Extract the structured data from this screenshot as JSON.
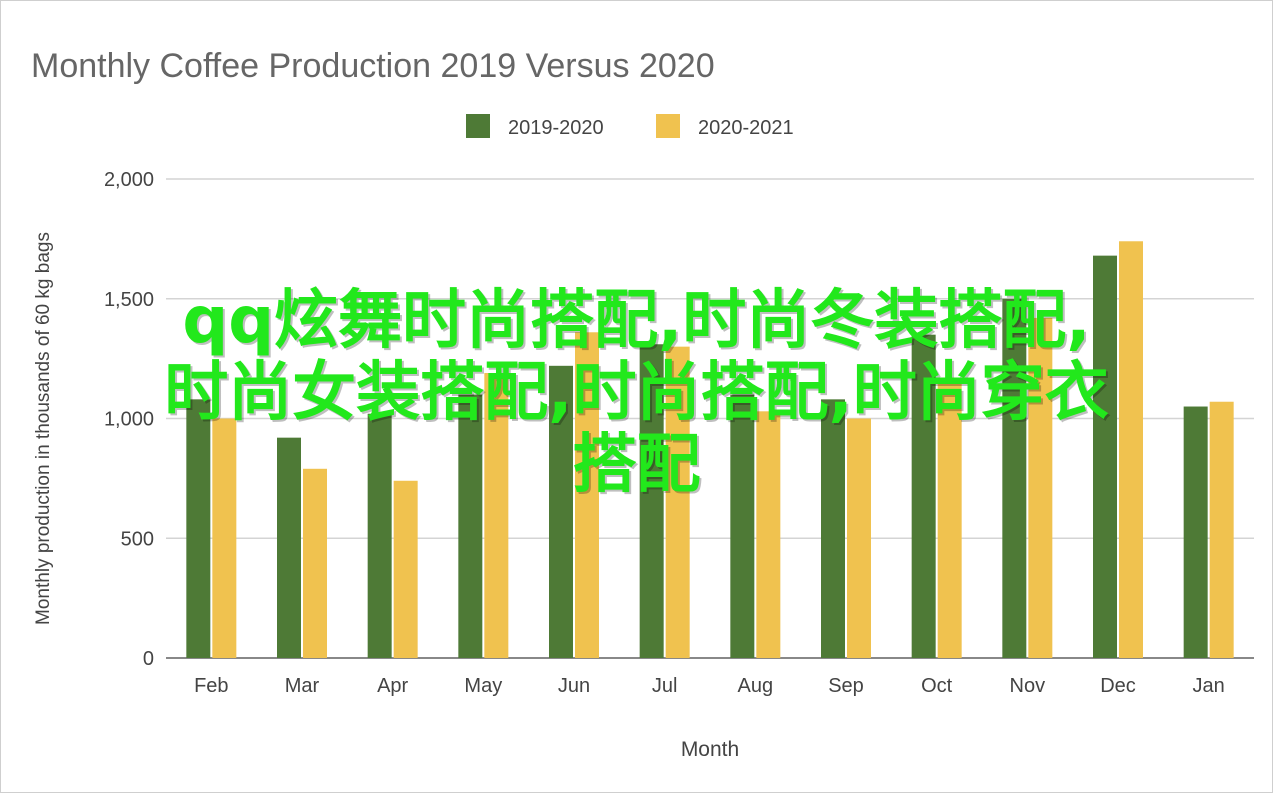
{
  "chart_data": {
    "type": "bar",
    "title": "Monthly Coffee Production 2019 Versus 2020",
    "xlabel": "Month",
    "ylabel": "Monthly production in thousands of 60 kg bags",
    "ylim": [
      0,
      2000
    ],
    "yticks": [
      0,
      500,
      1000,
      1500,
      2000
    ],
    "ytick_labels": [
      "0",
      "500",
      "1,000",
      "1,500",
      "2,000"
    ],
    "categories": [
      "Feb",
      "Mar",
      "Apr",
      "May",
      "Jun",
      "Jul",
      "Aug",
      "Sep",
      "Oct",
      "Nov",
      "Dec",
      "Jan"
    ],
    "series": [
      {
        "name": "2019-2020",
        "color": "#4e7a36",
        "values": [
          1080,
          920,
          1020,
          1100,
          1220,
          1310,
          1100,
          1080,
          1350,
          1500,
          1680,
          1050
        ]
      },
      {
        "name": "2020-2021",
        "color": "#f0c24f",
        "values": [
          1000,
          790,
          740,
          1190,
          1360,
          1300,
          1030,
          1000,
          1170,
          1420,
          1740,
          1070
        ]
      }
    ],
    "legend": "top-center",
    "grid": true
  },
  "overlay": {
    "line1": "qq炫舞时尚搭配,时尚冬装搭配,",
    "line2": "时尚女装搭配,时尚搭配,时尚穿衣",
    "line3": "搭配"
  }
}
